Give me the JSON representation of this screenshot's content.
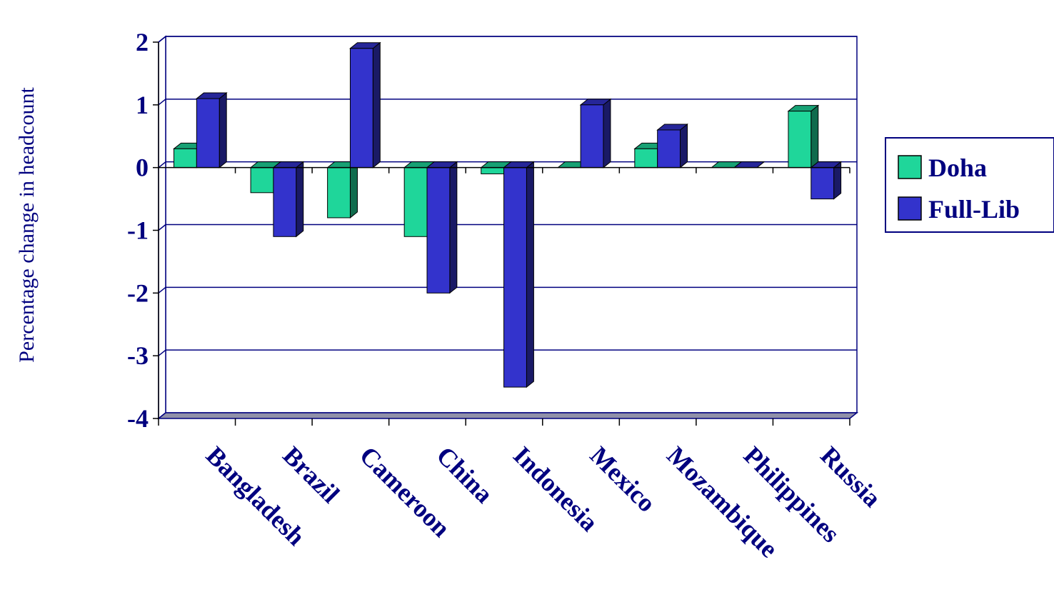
{
  "chart_data": {
    "type": "bar",
    "title": "",
    "xlabel": "",
    "ylabel": "Percentage change in headcount",
    "ylim": [
      -4,
      2
    ],
    "yticks": [
      "2",
      "1",
      "0",
      "-1",
      "-2",
      "-3",
      "-4"
    ],
    "grid": true,
    "legend_position": "right",
    "categories": [
      "Bangladesh",
      "Brazil",
      "Cameroon",
      "China",
      "Indonesia",
      "Mexico",
      "Mozambique",
      "Philippines",
      "Russia"
    ],
    "series": [
      {
        "name": "Doha",
        "color": "#1fd69a",
        "values": [
          0.3,
          -0.4,
          -0.8,
          -1.1,
          -0.1,
          0.0,
          0.3,
          0.0,
          0.9
        ]
      },
      {
        "name": "Full-Lib",
        "color": "#3333cc",
        "values": [
          1.1,
          -1.1,
          1.9,
          -2.0,
          -3.5,
          1.0,
          0.6,
          0.0,
          -0.5
        ]
      }
    ]
  }
}
